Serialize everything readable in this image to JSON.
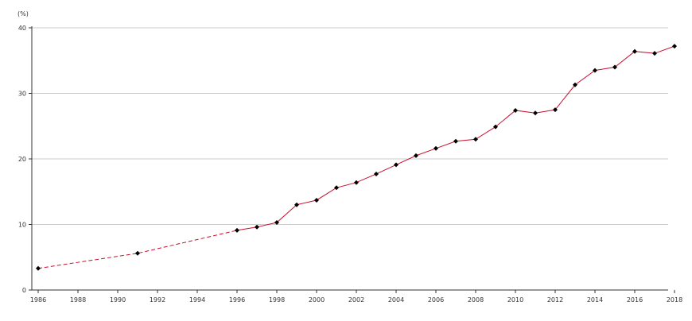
{
  "chart_data": {
    "type": "line",
    "title": "",
    "xlabel": "",
    "ylabel": "(%)",
    "xlim": [
      1986,
      2018
    ],
    "ylim": [
      0,
      40
    ],
    "x_ticks": [
      1986,
      1988,
      1990,
      1992,
      1994,
      1996,
      1998,
      2000,
      2002,
      2004,
      2006,
      2008,
      2010,
      2012,
      2014,
      2016,
      2018
    ],
    "y_ticks": [
      0,
      10,
      20,
      30,
      40
    ],
    "grid": "horizontal",
    "legend": "none",
    "line_color": "#c8102e",
    "marker_color": "#000000",
    "grid_color": "#cccccc",
    "series": [
      {
        "style": "dashed",
        "points": [
          {
            "x": 1986,
            "y": 3.3
          },
          {
            "x": 1991,
            "y": 5.6
          },
          {
            "x": 1996,
            "y": 9.1
          }
        ]
      },
      {
        "style": "solid",
        "points": [
          {
            "x": 1996,
            "y": 9.1
          },
          {
            "x": 1997,
            "y": 9.6
          },
          {
            "x": 1998,
            "y": 10.3
          },
          {
            "x": 1999,
            "y": 13.0
          },
          {
            "x": 2000,
            "y": 13.7
          },
          {
            "x": 2001,
            "y": 15.6
          },
          {
            "x": 2002,
            "y": 16.4
          },
          {
            "x": 2003,
            "y": 17.7
          },
          {
            "x": 2004,
            "y": 19.1
          },
          {
            "x": 2005,
            "y": 20.5
          },
          {
            "x": 2006,
            "y": 21.6
          },
          {
            "x": 2007,
            "y": 22.7
          },
          {
            "x": 2008,
            "y": 23.0
          },
          {
            "x": 2009,
            "y": 24.9
          },
          {
            "x": 2010,
            "y": 27.4
          },
          {
            "x": 2011,
            "y": 27.0
          },
          {
            "x": 2012,
            "y": 27.5
          },
          {
            "x": 2013,
            "y": 31.3
          },
          {
            "x": 2014,
            "y": 33.5
          },
          {
            "x": 2015,
            "y": 34.0
          },
          {
            "x": 2016,
            "y": 36.4
          },
          {
            "x": 2017,
            "y": 36.1
          },
          {
            "x": 2018,
            "y": 37.2
          }
        ]
      }
    ],
    "markers": [
      {
        "x": 1986,
        "y": 3.3
      },
      {
        "x": 1991,
        "y": 5.6
      },
      {
        "x": 1996,
        "y": 9.1
      },
      {
        "x": 1997,
        "y": 9.6
      },
      {
        "x": 1998,
        "y": 10.3
      },
      {
        "x": 1999,
        "y": 13.0
      },
      {
        "x": 2000,
        "y": 13.7
      },
      {
        "x": 2001,
        "y": 15.6
      },
      {
        "x": 2002,
        "y": 16.4
      },
      {
        "x": 2003,
        "y": 17.7
      },
      {
        "x": 2004,
        "y": 19.1
      },
      {
        "x": 2005,
        "y": 20.5
      },
      {
        "x": 2006,
        "y": 21.6
      },
      {
        "x": 2007,
        "y": 22.7
      },
      {
        "x": 2008,
        "y": 23.0
      },
      {
        "x": 2009,
        "y": 24.9
      },
      {
        "x": 2010,
        "y": 27.4
      },
      {
        "x": 2011,
        "y": 27.0
      },
      {
        "x": 2012,
        "y": 27.5
      },
      {
        "x": 2013,
        "y": 31.3
      },
      {
        "x": 2014,
        "y": 33.5
      },
      {
        "x": 2015,
        "y": 34.0
      },
      {
        "x": 2016,
        "y": 36.4
      },
      {
        "x": 2017,
        "y": 36.1
      },
      {
        "x": 2018,
        "y": 37.2
      }
    ]
  }
}
